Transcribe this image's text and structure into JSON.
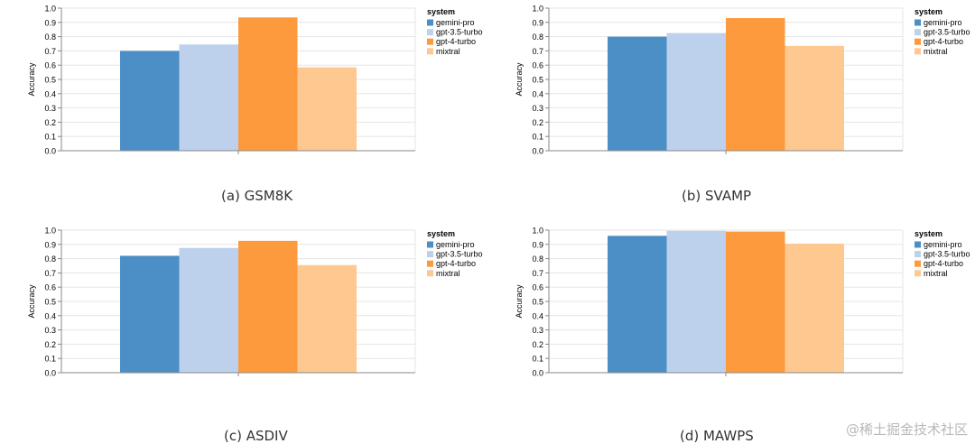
{
  "colors": {
    "gemini-pro": "#4c8fc6",
    "gpt-3.5-turbo": "#bdd1ed",
    "gpt-4-turbo": "#fd9a3e",
    "mixtral": "#fec891"
  },
  "watermark": "@稀土掘金技术社区",
  "chart_data": [
    {
      "type": "bar",
      "caption": "(a) GSM8K",
      "ylabel": "Accuracy",
      "ylim": [
        0,
        1.0
      ],
      "yticks": [
        "0.0",
        "0.1",
        "0.2",
        "0.3",
        "0.4",
        "0.5",
        "0.6",
        "0.7",
        "0.8",
        "0.9",
        "1.0"
      ],
      "legend_title": "system",
      "categories": [
        "gemini-pro",
        "gpt-3.5-turbo",
        "gpt-4-turbo",
        "mixtral"
      ],
      "values": [
        0.7,
        0.745,
        0.935,
        0.585
      ]
    },
    {
      "type": "bar",
      "caption": "(b) SVAMP",
      "ylabel": "Accuracy",
      "ylim": [
        0,
        1.0
      ],
      "yticks": [
        "0.0",
        "0.1",
        "0.2",
        "0.3",
        "0.4",
        "0.5",
        "0.6",
        "0.7",
        "0.8",
        "0.9",
        "1.0"
      ],
      "legend_title": "system",
      "categories": [
        "gemini-pro",
        "gpt-3.5-turbo",
        "gpt-4-turbo",
        "mixtral"
      ],
      "values": [
        0.8,
        0.825,
        0.93,
        0.735
      ]
    },
    {
      "type": "bar",
      "caption": "(c) ASDIV",
      "ylabel": "Accuracy",
      "ylim": [
        0,
        1.0
      ],
      "yticks": [
        "0.0",
        "0.1",
        "0.2",
        "0.3",
        "0.4",
        "0.5",
        "0.6",
        "0.7",
        "0.8",
        "0.9",
        "1.0"
      ],
      "legend_title": "system",
      "categories": [
        "gemini-pro",
        "gpt-3.5-turbo",
        "gpt-4-turbo",
        "mixtral"
      ],
      "values": [
        0.82,
        0.875,
        0.925,
        0.755
      ]
    },
    {
      "type": "bar",
      "caption": "(d) MAWPS",
      "ylabel": "Accuracy",
      "ylim": [
        0,
        1.0
      ],
      "yticks": [
        "0.0",
        "0.1",
        "0.2",
        "0.3",
        "0.4",
        "0.5",
        "0.6",
        "0.7",
        "0.8",
        "0.9",
        "1.0"
      ],
      "legend_title": "system",
      "categories": [
        "gemini-pro",
        "gpt-3.5-turbo",
        "gpt-4-turbo",
        "mixtral"
      ],
      "values": [
        0.96,
        0.995,
        0.99,
        0.905
      ]
    }
  ]
}
